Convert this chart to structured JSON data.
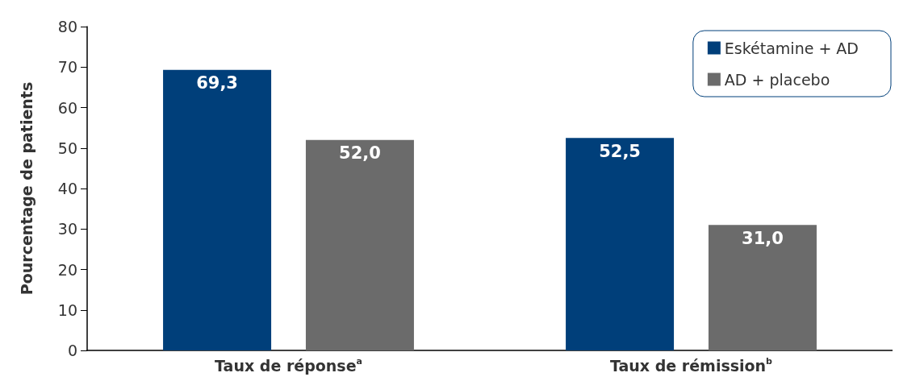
{
  "chart_data": {
    "type": "bar",
    "ylabel": "Pourcentage de patients",
    "categories": [
      "Taux de réponse$^{a}$",
      "Taux de rémission$^{b}$"
    ],
    "series": [
      {
        "name": "Eskétamine + AD",
        "color": "#003f7a",
        "values": [
          69.3,
          52.5
        ],
        "value_labels": [
          "69,3",
          "52,5"
        ]
      },
      {
        "name": "AD + placebo",
        "color": "#6b6b6b",
        "values": [
          52.0,
          31.0
        ],
        "value_labels": [
          "52,0",
          "31,0"
        ]
      }
    ],
    "ylim": [
      0,
      80
    ],
    "yticks": [
      0,
      10,
      20,
      30,
      40,
      50,
      60,
      70,
      80
    ],
    "grid": false,
    "legend": "top right"
  }
}
